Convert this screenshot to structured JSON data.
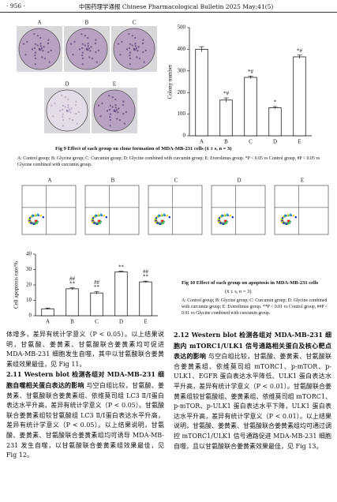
{
  "header": {
    "page": "· 956 ·",
    "journal": "中国药理学通报  Chinese Pharmacological Bulletin  2025 May;41(5)"
  },
  "plates": {
    "labels": [
      "A",
      "B",
      "C",
      "D",
      "E"
    ]
  },
  "flow": {
    "labels": [
      "A",
      "B",
      "C",
      "D",
      "E"
    ]
  },
  "chart_data": [
    {
      "type": "bar",
      "ylabel": "Colony number",
      "categories": [
        "A",
        "B",
        "C",
        "D",
        "E"
      ],
      "values": [
        400,
        165,
        270,
        130,
        365
      ],
      "errors": [
        12,
        10,
        6,
        5,
        8
      ],
      "annotations": [
        null,
        "*#",
        "*#",
        "*",
        "*#"
      ],
      "ylim": [
        0,
        500
      ],
      "yticks": [
        0,
        100,
        200,
        300,
        400,
        500
      ],
      "color": "#ffffff"
    },
    {
      "type": "bar",
      "ylabel": "Cell apoptosis rate/%",
      "categories": [
        "A",
        "B",
        "C",
        "D",
        "E"
      ],
      "values": [
        4.5,
        17.5,
        14.8,
        28.5,
        22
      ],
      "errors": [
        0.5,
        0.6,
        0.8,
        0.4,
        0.5
      ],
      "annotations_top": [
        null,
        "##",
        "##",
        null,
        "##"
      ],
      "annotations": [
        null,
        "**",
        "**",
        "**",
        "**"
      ],
      "ylim": [
        0,
        40
      ],
      "yticks": [
        0,
        10,
        20,
        30,
        40
      ],
      "color": "#ffffff"
    }
  ],
  "fig9": {
    "caption": "Fig 9  Effect of each group on clone formation of MDA-MB-231 cells (x̄ ± s, n = 3)",
    "note": "A: Control group; B: Glycine group; C: Curcumin group; D: Glycine combined with curcumin group; E: Everolimus group. *P < 0.05 vs Control group, #P < 0.05 vs Glycine combined with curcumin group."
  },
  "fig10": {
    "caption": "Fig 10  Effect of each group on apoptosis in MDA-MB-231 cells",
    "stat": "(x̄ ± s, n = 3)",
    "note": "A: Control group; B: Glycine group; C: Curcumin group; D: Glycine combined with curcumin group; E: Everolimus group. **P < 0.01 vs Control group, ##P < 0.01 vs Glycine combined with curcumin group."
  },
  "body": {
    "left_para1": "体增多，差异有统计学意义（P < 0.05）。以上结果说明，甘氨酸、姜黄素、甘氨酸联合姜黄素均可促进 MDA-MB-231 细胞发生自噬，其中以甘氨酸联合姜黄素组效果最佳，见 Fig 11。",
    "heading_211": "2.11  Western blot 检测各组对 MDA-MB-231 细胞自噬相关蛋白表达的影响",
    "para_211": "与空白组比较，甘氨酸、姜黄素、甘氨酸联合姜黄素组、依维莫司组 LC3 Ⅱ/Ⅰ蛋白表达水平升高，差异有统计学意义（P < 0.05）。甘氨酸联合姜黄素组较甘氨酸组 LC3 Ⅱ/Ⅰ蛋白表达水平升高，差异有统计学意义（P < 0.05）。以上结果说明，甘氨酸、姜黄素、甘氨酸联合姜黄素组均可诱导 MDA-MB-231 发生自噬，以甘氨酸联合姜黄素组效果最佳，见 Fig 12。",
    "heading_212": "2.12  Western blot 检测各组对 MDA-MB-231 细胞内 mTORC1/ULK1 信号通路相关蛋白及核心靶点表达的影响",
    "para_212": "与空白组比较，甘氨酸、姜黄素、甘氨酸联合姜黄素组、依维莫司组 mTORC1、p-mTOR、p-ULK1、EGFR 蛋白表达水平降低、ULK1 蛋白表达水平升高，差异有统计学意义（P < 0.01）。甘氨酸联合姜黄素组较甘氨酸组、姜黄素组、依维莫司组 mTORC1、p-mTOR、p-ULK1 蛋白表达水平下降，ULK1 蛋白表达水平升高，差异有统计学意义（P < 0.01）。以上结果说明，甘氨酸、姜黄素、甘氨酸联合姜黄素组均可通过调控 mTORC1/ULK1 信号通路促进 MDA-MB-231 细胞自噬，且以甘氨酸联合姜黄素效果最佳，见 Fig 13。"
  }
}
